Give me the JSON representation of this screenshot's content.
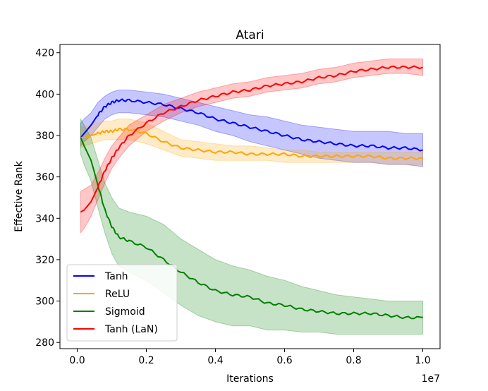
{
  "chart_data": {
    "type": "line",
    "title": "Atari",
    "xlabel": "Iterations",
    "ylabel": "Effective Rank",
    "x_offset_label": "1e7",
    "xlim": [
      -0.05,
      1.05
    ],
    "ylim": [
      277,
      424
    ],
    "xticks": [
      0.0,
      0.2,
      0.4,
      0.6,
      0.8,
      1.0
    ],
    "xtick_labels": [
      "0.0",
      "0.2",
      "0.4",
      "0.6",
      "0.8",
      "1.0"
    ],
    "yticks": [
      280,
      300,
      320,
      340,
      360,
      380,
      400,
      420
    ],
    "ytick_labels": [
      "280",
      "300",
      "320",
      "340",
      "360",
      "380",
      "400",
      "420"
    ],
    "grid": false,
    "legend_position": "lower-left",
    "x": [
      0.01,
      0.02,
      0.04,
      0.06,
      0.08,
      0.1,
      0.12,
      0.15,
      0.2,
      0.25,
      0.3,
      0.35,
      0.4,
      0.45,
      0.5,
      0.55,
      0.6,
      0.65,
      0.7,
      0.75,
      0.8,
      0.85,
      0.9,
      0.95,
      1.0
    ],
    "series": [
      {
        "name": "Tanh",
        "color": "#0000ff",
        "values": [
          379,
          381,
          385,
          390,
          394,
          396,
          397,
          397,
          396,
          395,
          393,
          391,
          388,
          386,
          384,
          382,
          380,
          378,
          377,
          376,
          375,
          375,
          374,
          374,
          373
        ],
        "lower": [
          375,
          377,
          380,
          384,
          388,
          390,
          391,
          391,
          390,
          389,
          387,
          385,
          382,
          380,
          377,
          375,
          373,
          371,
          369,
          368,
          367,
          367,
          366,
          366,
          365
        ],
        "upper": [
          386,
          388,
          391,
          396,
          399,
          401,
          402,
          402,
          401,
          400,
          398,
          396,
          394,
          392,
          390,
          389,
          387,
          385,
          384,
          383,
          382,
          382,
          382,
          381,
          381
        ]
      },
      {
        "name": "ReLU",
        "color": "#ffa500",
        "values": [
          379,
          379,
          380,
          381,
          382,
          382,
          383,
          383,
          381,
          377,
          374,
          373,
          372,
          372,
          371,
          371,
          371,
          370,
          370,
          370,
          370,
          370,
          369,
          369,
          369
        ],
        "lower": [
          374,
          375,
          376,
          377,
          378,
          378,
          378,
          378,
          376,
          373,
          370,
          369,
          368,
          368,
          368,
          368,
          367,
          367,
          367,
          367,
          367,
          367,
          366,
          366,
          366
        ],
        "upper": [
          384,
          384,
          385,
          386,
          387,
          387,
          388,
          388,
          386,
          382,
          378,
          377,
          376,
          375,
          375,
          374,
          373,
          373,
          372,
          372,
          372,
          372,
          372,
          372,
          372
        ]
      },
      {
        "name": "Sigmoid",
        "color": "#008000",
        "values": [
          379,
          375,
          368,
          356,
          344,
          336,
          331,
          329,
          326,
          320,
          314,
          309,
          305,
          303,
          302,
          299,
          298,
          296,
          295,
          294,
          294,
          294,
          293,
          292,
          292
        ],
        "lower": [
          371,
          366,
          358,
          345,
          333,
          323,
          317,
          314,
          310,
          304,
          298,
          293,
          290,
          288,
          288,
          286,
          286,
          285,
          285,
          284,
          284,
          284,
          284,
          284,
          284
        ],
        "upper": [
          388,
          385,
          379,
          368,
          357,
          350,
          345,
          343,
          341,
          337,
          330,
          325,
          320,
          317,
          315,
          312,
          310,
          307,
          305,
          303,
          302,
          301,
          300,
          300,
          300
        ]
      },
      {
        "name": "Tanh (LaN)",
        "color": "#ff0000",
        "values": [
          343,
          344,
          348,
          355,
          363,
          369,
          374,
          380,
          386,
          391,
          394,
          397,
          399,
          401,
          402,
          404,
          405,
          406,
          408,
          409,
          411,
          412,
          413,
          413,
          413
        ],
        "lower": [
          333,
          335,
          341,
          349,
          357,
          364,
          369,
          375,
          382,
          387,
          391,
          394,
          396,
          398,
          399,
          401,
          402,
          403,
          405,
          406,
          408,
          409,
          410,
          410,
          409
        ],
        "upper": [
          353,
          354,
          356,
          362,
          369,
          375,
          379,
          385,
          390,
          395,
          398,
          401,
          403,
          405,
          406,
          408,
          409,
          410,
          412,
          413,
          415,
          416,
          417,
          417,
          417
        ]
      }
    ]
  }
}
